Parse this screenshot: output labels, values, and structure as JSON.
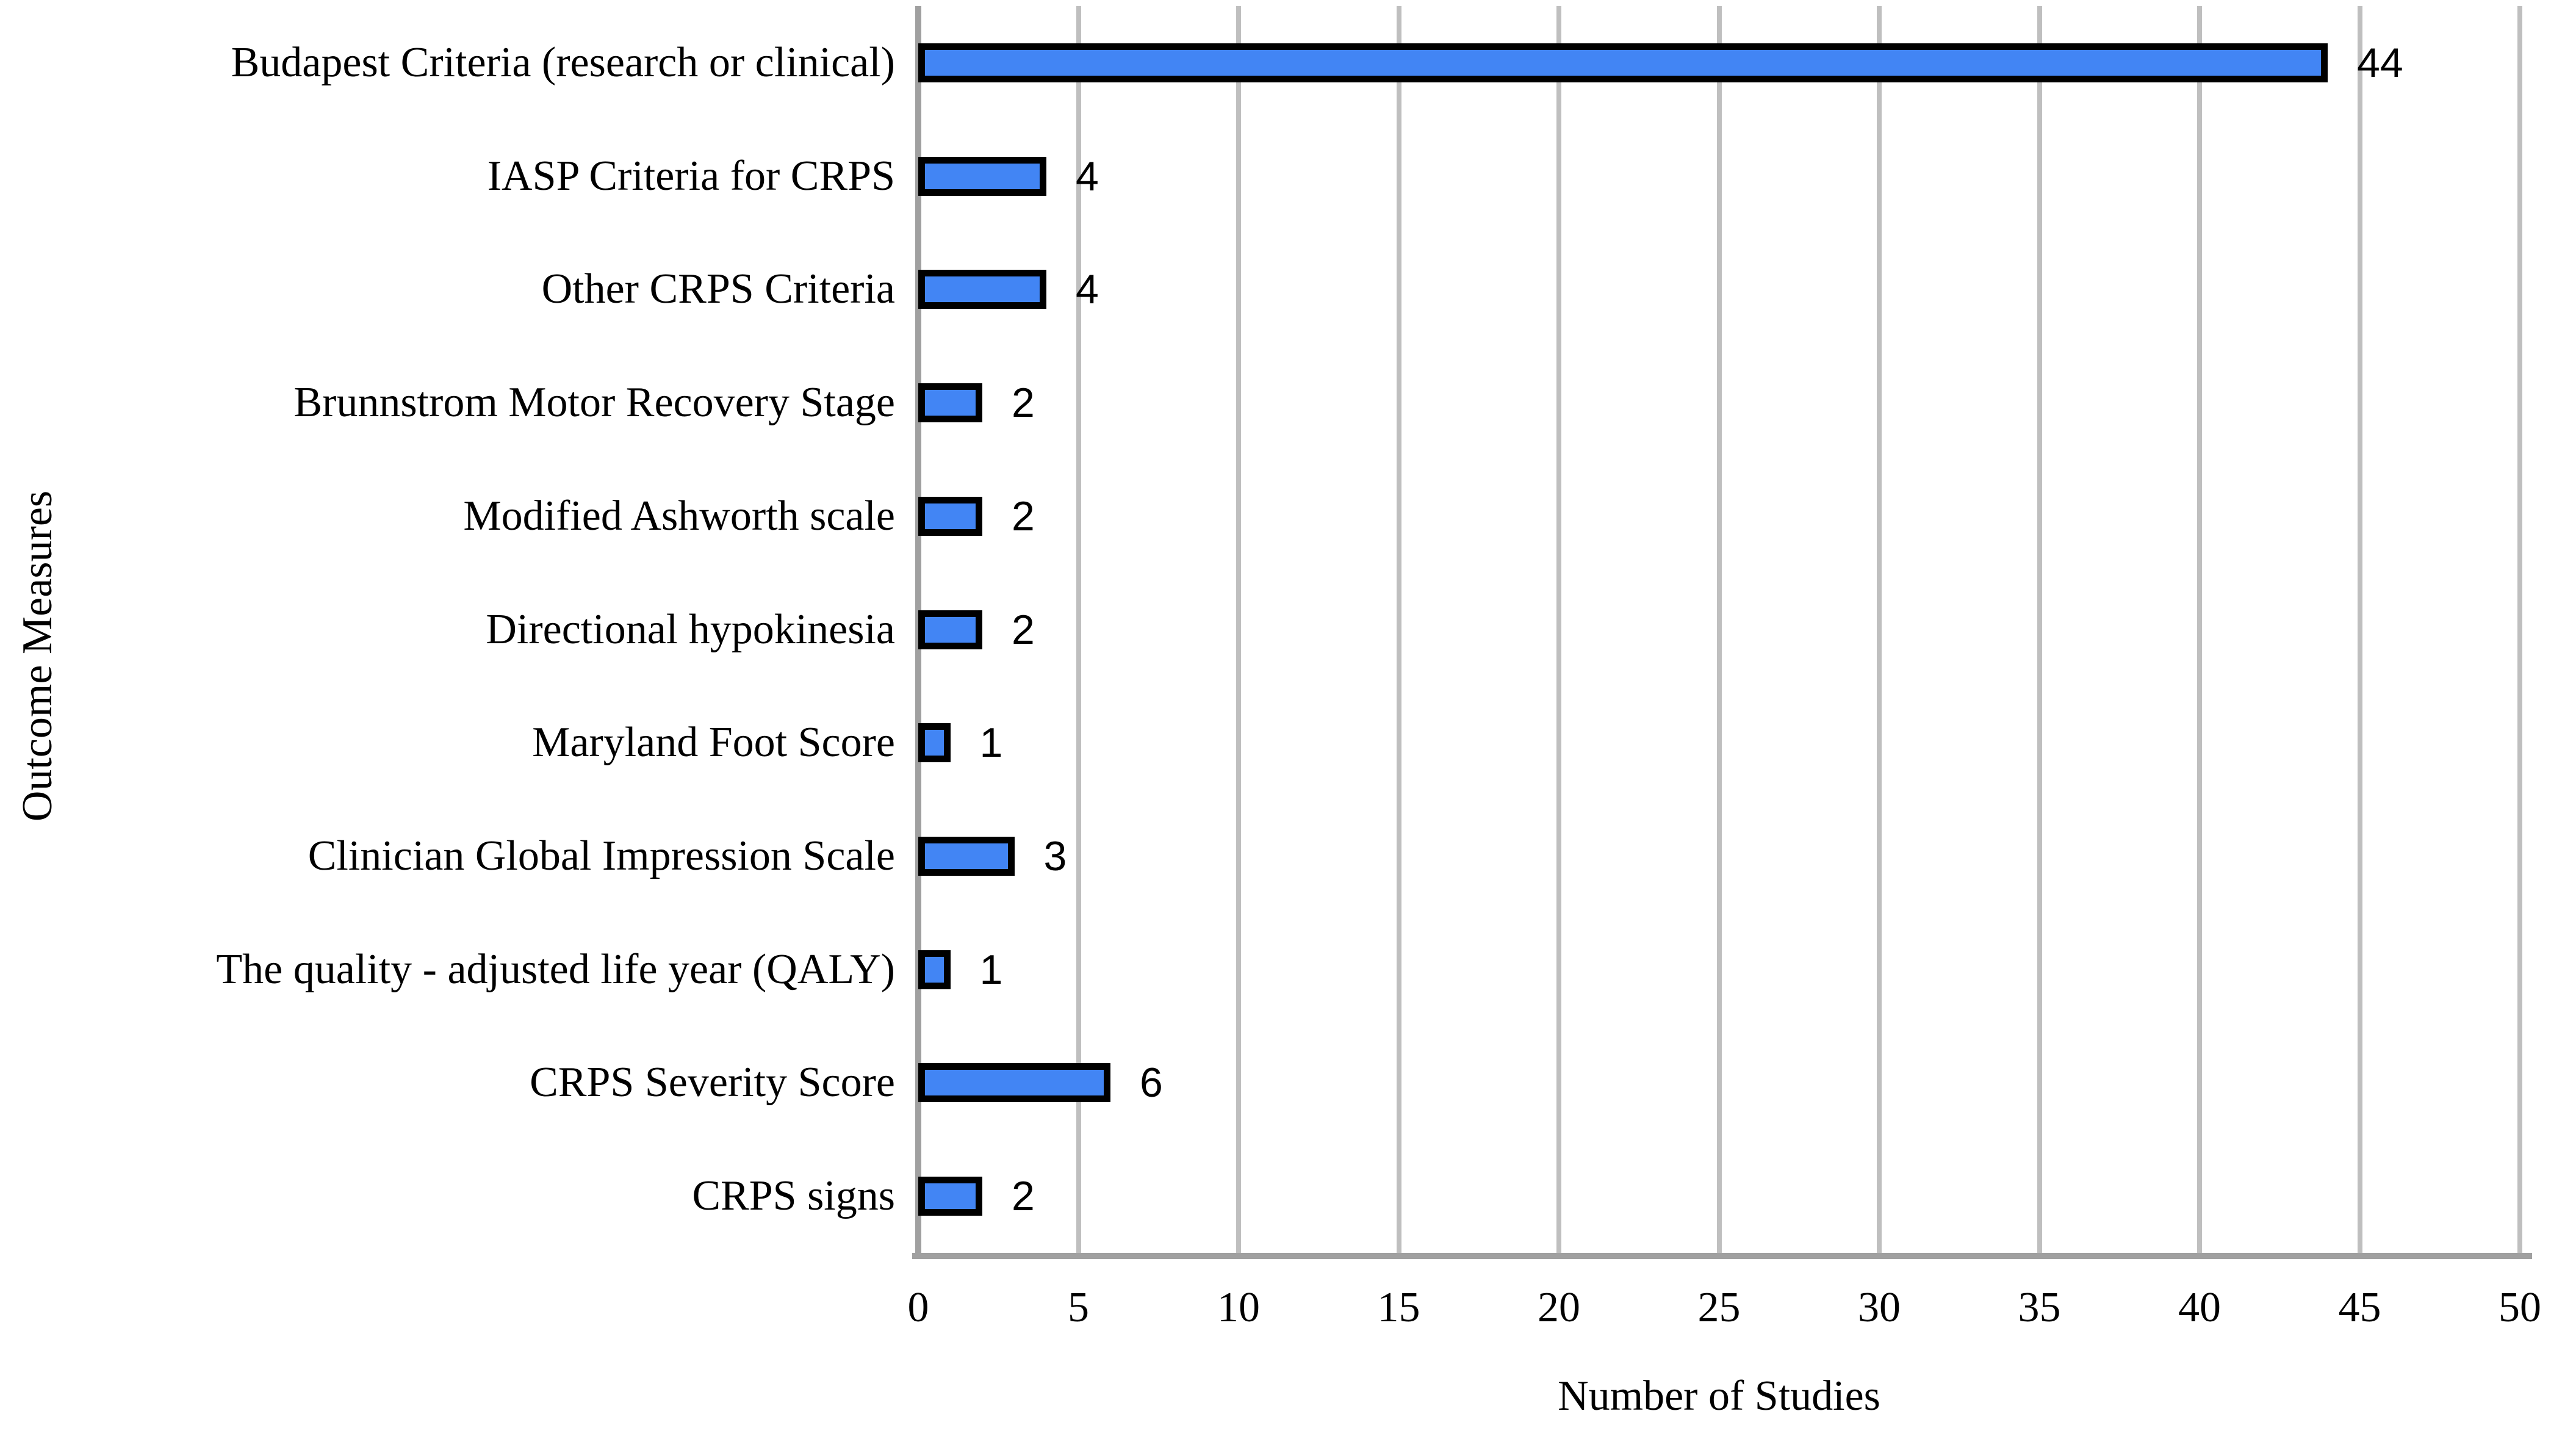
{
  "chart_data": {
    "type": "bar",
    "orientation": "horizontal",
    "title": "",
    "xlabel": "Number of Studies",
    "ylabel": "Outcome Measures",
    "categories": [
      "Budapest Criteria (research or clinical)",
      "IASP Criteria for CRPS",
      "Other CRPS Criteria",
      "Brunnstrom Motor Recovery Stage",
      "Modified Ashworth scale",
      "Directional hypokinesia",
      "Maryland Foot Score",
      "Clinician Global Impression Scale",
      "The quality - adjusted life year (QALY)",
      "CRPS Severity Score",
      "CRPS signs"
    ],
    "values": [
      44,
      4,
      4,
      2,
      2,
      2,
      1,
      3,
      1,
      6,
      2
    ],
    "data_labels": [
      "44",
      "4",
      "4",
      "2",
      "2",
      "2",
      "1",
      "3",
      "1",
      "6",
      "2"
    ],
    "xlim": [
      0,
      50
    ],
    "xticks": [
      0,
      5,
      10,
      15,
      20,
      25,
      30,
      35,
      40,
      45,
      50
    ],
    "grid": "vertical-gridlines-only",
    "legend": "none",
    "colors": {
      "bar_fill": "#4285F4",
      "bar_border": "#000000",
      "gridline": "#BFBFBF",
      "axis": "#A0A0A0",
      "text": "#000000",
      "background": "#FFFFFF"
    }
  }
}
